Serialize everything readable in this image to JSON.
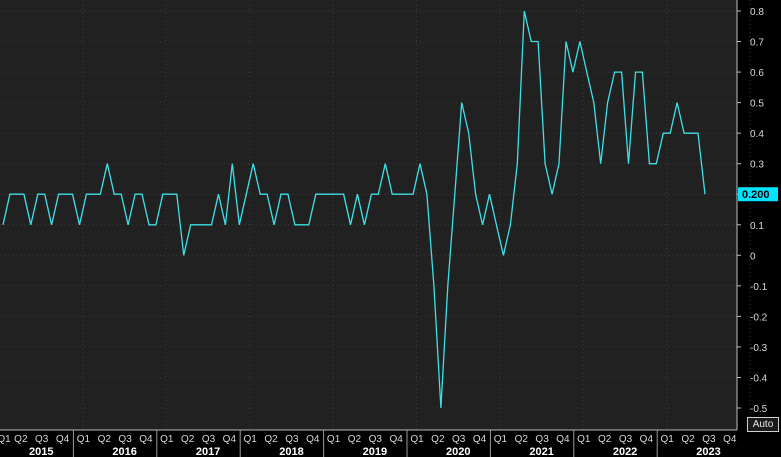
{
  "controls": {
    "auto_label": "Auto"
  },
  "chart_data": {
    "type": "line",
    "title": "",
    "xlabel": "",
    "ylabel": "",
    "ylim": [
      -0.52,
      0.82
    ],
    "y_ticks": [
      0.8,
      0.7,
      0.6,
      0.5,
      0.4,
      0.3,
      0.2,
      0.1,
      0,
      -0.1,
      -0.2,
      -0.3,
      -0.4,
      -0.5
    ],
    "y_tick_labels": [
      "0.8",
      "0.7",
      "0.6",
      "0.5",
      "0.4",
      "0.3",
      "0.2",
      "0.1",
      "0",
      "-0.1",
      "-0.2",
      "-0.3",
      "-0.4",
      "-0.5"
    ],
    "grid": true,
    "x_label_rows": {
      "quarters": [
        "Q1",
        "Q2",
        "Q3",
        "Q4",
        "Q1",
        "Q2",
        "Q3",
        "Q4",
        "Q1",
        "Q2",
        "Q3",
        "Q4",
        "Q1",
        "Q2",
        "Q3",
        "Q4",
        "Q1",
        "Q2",
        "Q3",
        "Q4",
        "Q1",
        "Q2",
        "Q3",
        "Q4",
        "Q1",
        "Q2",
        "Q3",
        "Q4",
        "Q1",
        "Q2",
        "Q3",
        "Q4",
        "Q1",
        "Q2",
        "Q3",
        "Q4"
      ],
      "years": [
        "2015",
        "2016",
        "2017",
        "2018",
        "2019",
        "2020",
        "2021",
        "2022",
        "2023"
      ]
    },
    "last_value_label": "0.200",
    "series": [
      {
        "color": "#3ee0e8",
        "values": [
          0.1,
          0.2,
          0.2,
          0.2,
          0.1,
          0.2,
          0.2,
          0.1,
          0.2,
          0.2,
          0.2,
          0.1,
          0.2,
          0.2,
          0.2,
          0.3,
          0.2,
          0.2,
          0.1,
          0.2,
          0.2,
          0.1,
          0.1,
          0.2,
          0.2,
          0.2,
          0,
          0.1,
          0.1,
          0.1,
          0.1,
          0.2,
          0.1,
          0.3,
          0.1,
          0.2,
          0.3,
          0.2,
          0.2,
          0.1,
          0.2,
          0.2,
          0.1,
          0.1,
          0.1,
          0.2,
          0.2,
          0.2,
          0.2,
          0.2,
          0.1,
          0.2,
          0.1,
          0.2,
          0.2,
          0.3,
          0.2,
          0.2,
          0.2,
          0.2,
          0.3,
          0.2,
          -0.1,
          -0.5,
          -0.1,
          0.2,
          0.5,
          0.4,
          0.2,
          0.1,
          0.2,
          0.1,
          0,
          0.1,
          0.3,
          0.8,
          0.7,
          0.7,
          0.3,
          0.2,
          0.3,
          0.7,
          0.6,
          0.7,
          0.6,
          0.5,
          0.3,
          0.5,
          0.6,
          0.6,
          0.3,
          0.6,
          0.6,
          0.3,
          0.3,
          0.4,
          0.4,
          0.5,
          0.4,
          0.4,
          0.4,
          0.2
        ],
        "label_color": "#00e5ff"
      }
    ]
  }
}
